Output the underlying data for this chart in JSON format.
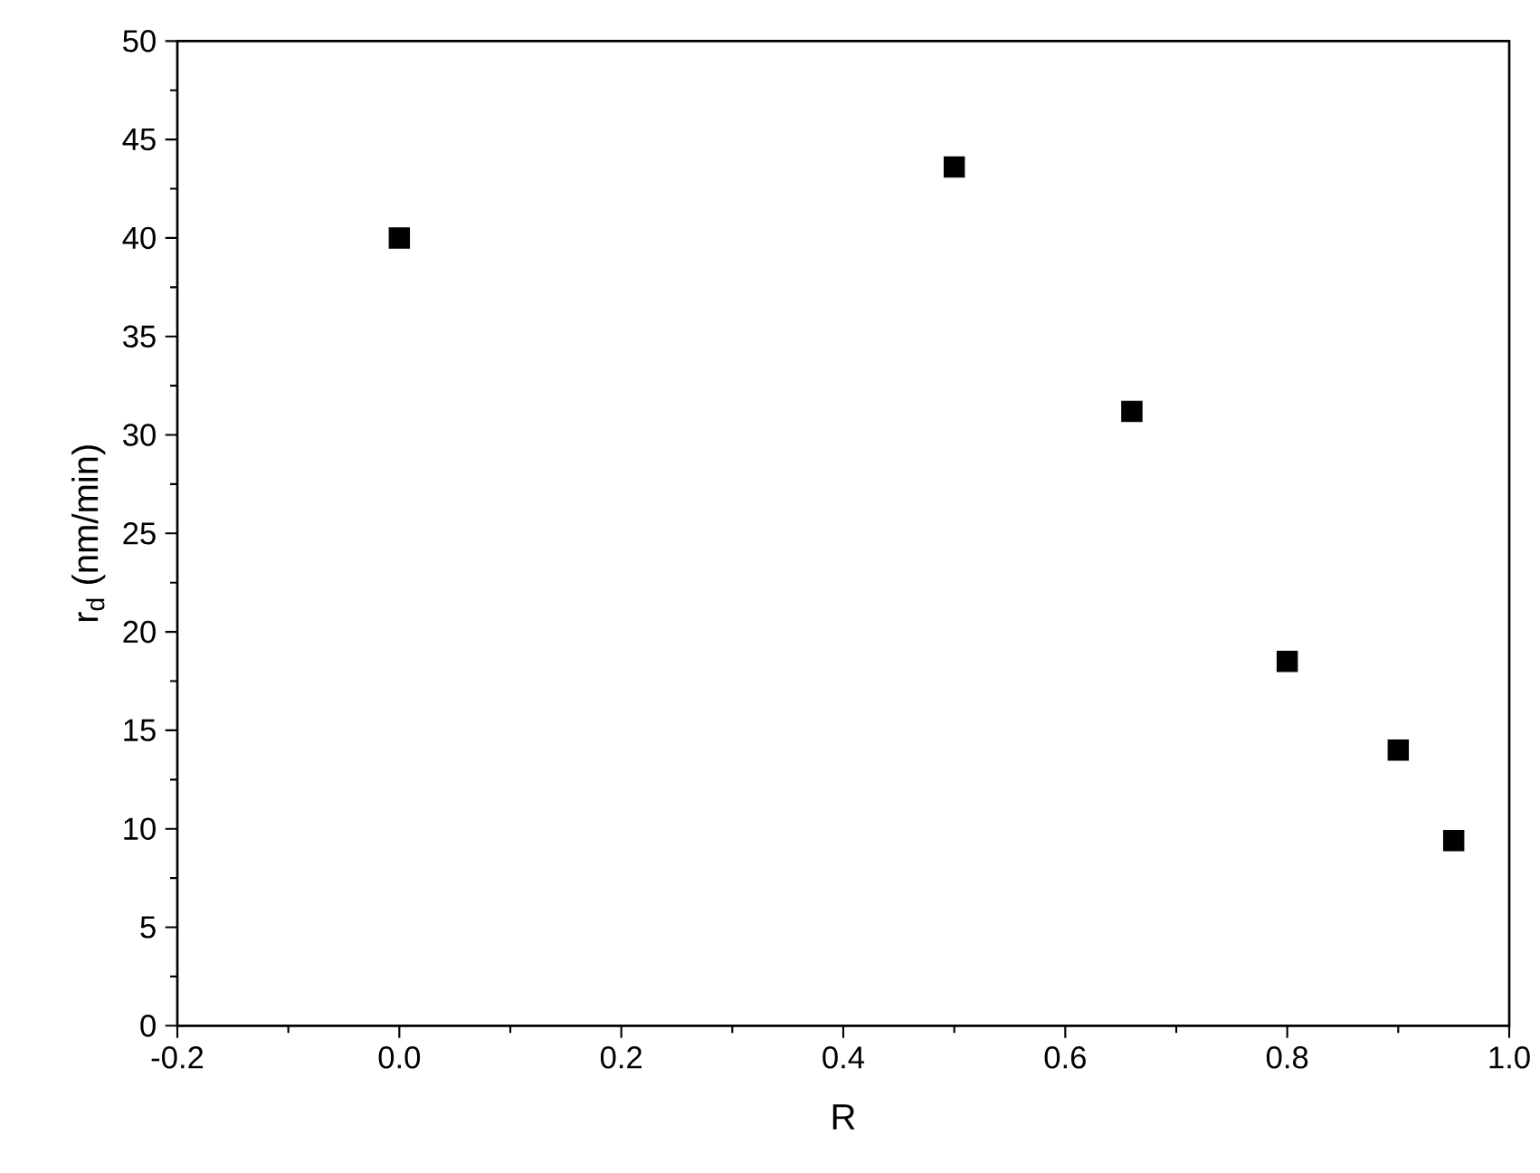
{
  "chart_data": {
    "type": "scatter",
    "xlabel": "R",
    "ylabel": "r$_{d}$ (nm/min)",
    "x": [
      0.0,
      0.5,
      0.66,
      0.8,
      0.9,
      0.95
    ],
    "series": [
      {
        "color": "#000000",
        "values": [
          40.0,
          43.6,
          31.2,
          18.5,
          14.0,
          9.4
        ]
      }
    ],
    "marker": "square",
    "xlim": [
      -0.2,
      1.0
    ],
    "xticks": [
      {
        "value": -0.2,
        "label": "-0.2"
      },
      {
        "value": 0.0,
        "label": "0.0"
      },
      {
        "value": 0.2,
        "label": "0.2"
      },
      {
        "value": 0.4,
        "label": "0.4"
      },
      {
        "value": 0.6,
        "label": "0.6"
      },
      {
        "value": 0.8,
        "label": "0.8"
      },
      {
        "value": 1.0,
        "label": "1.0"
      }
    ],
    "ylim": [
      0,
      50
    ],
    "yticks": [
      0,
      5,
      10,
      15,
      20,
      25,
      30,
      35,
      40,
      45,
      50
    ],
    "grid": false
  }
}
